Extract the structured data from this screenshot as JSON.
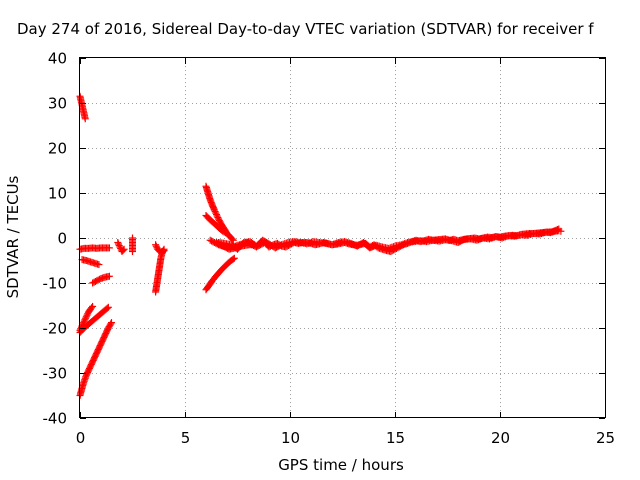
{
  "chart_data": {
    "type": "scatter",
    "title": "Day 274 of 2016, Sidereal Day-to-day VTEC variation (SDTVAR) for receiver f",
    "xlabel": "GPS time / hours",
    "ylabel": "SDTVAR / TECUs",
    "xlim": [
      0,
      25
    ],
    "ylim": [
      -40,
      40
    ],
    "x_ticks": [
      "0",
      "5",
      "10",
      "15",
      "20",
      "25"
    ],
    "y_ticks": [
      "40",
      "30",
      "20",
      "10",
      "0",
      "-10",
      "-20",
      "-30",
      "-40"
    ],
    "grid": true,
    "marker": "plus",
    "color": "#ff0000",
    "segments": [
      {
        "x": [
          0.0,
          0.05,
          0.1,
          0.15,
          0.2,
          0.25
        ],
        "y": [
          31.5,
          30.5,
          29.5,
          28.5,
          27.5,
          26.5
        ]
      },
      {
        "x": [
          0.0,
          0.2,
          0.4,
          0.6,
          0.8,
          1.0,
          1.2,
          1.4
        ],
        "y": [
          -2.5,
          -2.3,
          -2.3,
          -2.2,
          -2.3,
          -2.2,
          -2.2,
          -2.2
        ]
      },
      {
        "x": [
          0.1,
          0.3,
          0.5,
          0.7,
          0.9
        ],
        "y": [
          -4.8,
          -5.0,
          -5.3,
          -5.6,
          -5.9
        ]
      },
      {
        "x": [
          0.0,
          0.1,
          0.2,
          0.3,
          0.4,
          0.5,
          0.6
        ],
        "y": [
          -20.5,
          -19.5,
          -18.5,
          -17.5,
          -16.5,
          -15.8,
          -15.2
        ]
      },
      {
        "x": [
          0.0,
          0.15,
          0.3,
          0.45,
          0.6,
          0.75,
          0.9,
          1.05,
          1.2,
          1.35
        ],
        "y": [
          -21.0,
          -20.2,
          -19.6,
          -19.0,
          -18.4,
          -17.8,
          -17.2,
          -16.6,
          -16.0,
          -15.4
        ]
      },
      {
        "x": [
          0.0,
          0.15,
          0.3,
          0.45,
          0.6,
          0.75,
          0.9,
          1.05,
          1.2,
          1.35,
          1.5
        ],
        "y": [
          -35.0,
          -32.5,
          -30.5,
          -29.0,
          -27.5,
          -26.0,
          -24.5,
          -23.0,
          -21.5,
          -20.0,
          -18.8
        ]
      },
      {
        "x": [
          0.6,
          0.8,
          1.0,
          1.2,
          1.4
        ],
        "y": [
          -10.0,
          -9.5,
          -9.0,
          -8.7,
          -8.5
        ]
      },
      {
        "x": [
          1.8,
          1.9,
          2.0,
          2.1
        ],
        "y": [
          -1.0,
          -2.0,
          -3.0,
          -2.5
        ]
      },
      {
        "x": [
          2.5,
          2.5,
          2.5,
          2.5
        ],
        "y": [
          0.0,
          -1.0,
          -2.0,
          -3.0
        ]
      },
      {
        "x": [
          3.6,
          3.65,
          3.7,
          3.75,
          3.8,
          3.85,
          3.9,
          3.95,
          4.0
        ],
        "y": [
          -12.0,
          -10.5,
          -9.0,
          -7.5,
          -6.0,
          -4.5,
          -3.5,
          -3.0,
          -2.5
        ]
      },
      {
        "x": [
          3.6,
          3.7,
          3.8,
          3.9,
          4.0
        ],
        "y": [
          -1.5,
          -2.5,
          -3.0,
          -3.0,
          -2.8
        ]
      },
      {
        "x": [
          6.0,
          6.1,
          6.2,
          6.3,
          6.4,
          6.5,
          6.6,
          6.7,
          6.8,
          6.9,
          7.0,
          7.1,
          7.2,
          7.3
        ],
        "y": [
          11.5,
          10.0,
          8.5,
          7.3,
          6.2,
          5.2,
          4.2,
          3.3,
          2.5,
          1.8,
          1.0,
          0.5,
          0.0,
          -0.5
        ]
      },
      {
        "x": [
          6.0,
          6.2,
          6.4,
          6.6,
          6.8,
          7.0
        ],
        "y": [
          5.0,
          4.0,
          3.2,
          2.3,
          1.5,
          1.0
        ]
      },
      {
        "x": [
          6.0,
          6.15,
          6.3,
          6.45,
          6.6,
          6.75,
          6.9,
          7.05,
          7.2,
          7.35
        ],
        "y": [
          -11.5,
          -10.5,
          -9.5,
          -8.6,
          -7.8,
          -7.0,
          -6.3,
          -5.6,
          -5.0,
          -4.5
        ]
      },
      {
        "x": [
          6.5,
          6.7,
          6.9,
          7.1,
          7.3,
          7.5,
          7.7,
          7.9,
          8.1,
          8.3
        ],
        "y": [
          -1.0,
          -1.5,
          -2.0,
          -2.5,
          -2.3,
          -2.0,
          -1.8,
          -1.6,
          -1.5,
          -1.5
        ]
      },
      {
        "x": [
          6.2,
          6.4,
          6.6,
          6.8,
          7.0,
          7.2,
          7.4,
          7.6,
          7.8,
          8.0,
          8.2,
          8.4,
          8.6,
          8.8,
          9.0,
          9.2,
          9.4,
          9.6,
          9.8,
          10.0,
          10.2,
          10.4,
          10.6,
          10.8,
          11.0,
          11.2,
          11.4,
          11.6,
          11.8,
          12.0,
          12.2,
          12.4,
          12.6,
          12.8,
          13.0,
          13.2,
          13.4,
          13.6,
          13.8,
          14.0,
          14.2,
          14.4,
          14.6,
          14.8,
          15.0,
          15.2,
          15.4,
          15.6,
          15.8,
          16.0,
          16.2,
          16.4,
          16.6,
          16.8,
          17.0,
          17.2,
          17.4,
          17.6,
          17.8,
          18.0,
          18.2,
          18.4,
          18.6,
          18.8,
          19.0,
          19.2,
          19.4,
          19.6,
          19.8,
          20.0,
          20.2,
          20.4,
          20.6,
          20.8,
          21.0,
          21.2,
          21.4,
          21.6,
          21.8,
          22.0,
          22.2,
          22.4,
          22.6,
          22.8,
          22.9
        ],
        "y": [
          -0.5,
          -1.0,
          -1.5,
          -1.8,
          -2.0,
          -2.0,
          -1.8,
          -1.5,
          -1.2,
          -1.0,
          -1.5,
          -2.0,
          -1.5,
          -1.0,
          -2.0,
          -1.5,
          -1.2,
          -1.8,
          -2.0,
          -1.5,
          -1.0,
          -1.2,
          -1.0,
          -1.0,
          -1.2,
          -1.5,
          -1.3,
          -1.0,
          -1.2,
          -1.5,
          -1.4,
          -1.2,
          -1.0,
          -1.3,
          -1.5,
          -1.6,
          -1.4,
          -1.2,
          -2.0,
          -1.5,
          -2.2,
          -2.5,
          -2.8,
          -3.0,
          -2.5,
          -2.0,
          -1.5,
          -1.2,
          -0.8,
          -0.5,
          -0.8,
          -0.6,
          -0.3,
          -0.5,
          -0.4,
          -0.3,
          -0.2,
          -0.5,
          -0.3,
          -0.6,
          -0.4,
          -0.2,
          -0.1,
          0.0,
          -0.2,
          0.0,
          0.2,
          0.1,
          0.3,
          0.2,
          0.4,
          0.5,
          0.6,
          0.5,
          0.8,
          0.9,
          1.0,
          1.0,
          1.1,
          1.2,
          1.3,
          1.2,
          1.5,
          1.6,
          1.5
        ]
      },
      {
        "x": [
          6.6,
          6.9,
          7.2,
          7.5,
          7.8,
          8.1,
          8.4,
          8.7,
          9.0,
          9.3,
          9.6,
          9.9,
          10.2,
          10.5,
          10.8,
          11.1,
          11.4,
          11.7,
          12.0,
          12.3,
          12.6,
          12.9,
          13.2,
          13.5,
          13.8,
          14.1,
          14.4,
          14.7,
          15.0,
          15.3,
          15.6,
          15.9,
          16.2,
          16.5,
          16.8,
          17.1,
          17.4,
          17.7,
          18.0,
          18.3,
          18.6,
          18.9,
          19.2,
          19.5,
          19.8,
          20.1,
          20.4,
          20.7,
          21.0,
          21.3,
          21.6,
          21.9,
          22.2,
          22.5,
          22.8
        ],
        "y": [
          -1.0,
          -1.2,
          -1.5,
          -2.5,
          -1.0,
          -0.8,
          -1.8,
          -0.5,
          -1.3,
          -2.2,
          -1.5,
          -1.0,
          -0.8,
          -1.0,
          -1.3,
          -0.8,
          -1.0,
          -1.2,
          -1.5,
          -1.0,
          -0.8,
          -1.2,
          -1.8,
          -1.0,
          -2.2,
          -1.6,
          -2.0,
          -2.3,
          -1.8,
          -1.5,
          -1.0,
          -0.8,
          -0.6,
          -0.8,
          -0.5,
          -0.7,
          -0.4,
          -0.6,
          -1.0,
          -0.3,
          -0.2,
          -0.5,
          0.0,
          -0.2,
          0.3,
          0.0,
          0.5,
          0.4,
          0.7,
          0.6,
          1.0,
          0.9,
          1.3,
          1.4,
          2.0
        ]
      }
    ]
  }
}
